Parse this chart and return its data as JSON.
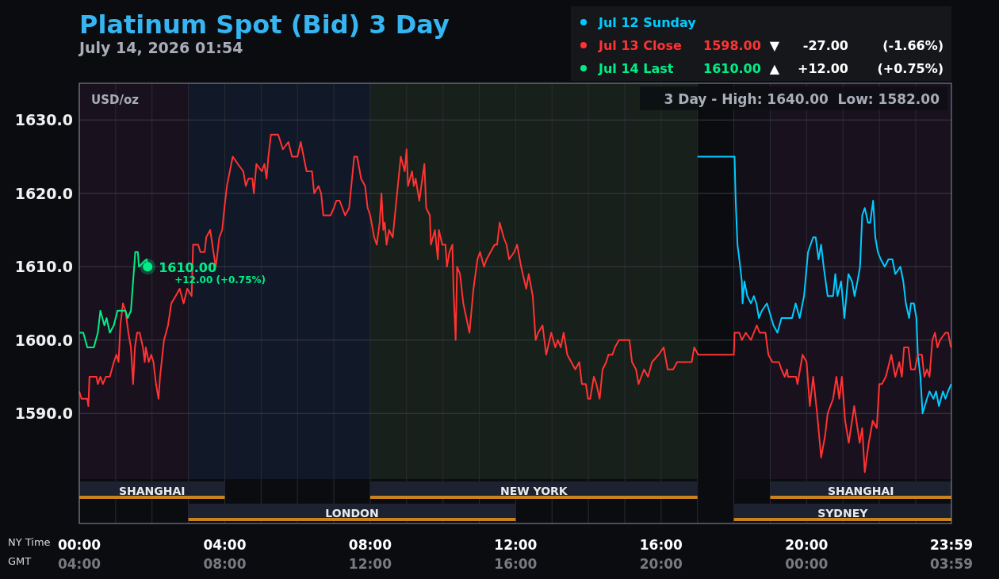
{
  "chart_data": {
    "type": "line",
    "title": "Platinum Spot (Bid) 3 Day",
    "subtitle": "July 14, 2026 01:54",
    "xlabel": "NY Time",
    "x2label": "GMT",
    "xlim": [
      0,
      23.9833
    ],
    "xticks": [
      {
        "value": 0,
        "label": "00:00"
      },
      {
        "value": 4,
        "label": "04:00"
      },
      {
        "value": 8,
        "label": "08:00"
      },
      {
        "value": 12,
        "label": "12:00"
      },
      {
        "value": 16,
        "label": "16:00"
      },
      {
        "value": 20,
        "label": "20:00"
      },
      {
        "value": 23.9833,
        "label": "23:59"
      }
    ],
    "x2lim": [
      "2026-07-14T04:00",
      "2026-07-15T03:59"
    ],
    "x2ticks": [
      {
        "value": "2026-07-14T04:00",
        "label": "04:00"
      },
      {
        "value": "2026-07-14T08:00",
        "label": "08:00"
      },
      {
        "value": "2026-07-14T12:00",
        "label": "12:00"
      },
      {
        "value": "2026-07-14T16:00",
        "label": "16:00"
      },
      {
        "value": "2026-07-14T20:00",
        "label": "20:00"
      },
      {
        "value": "2026-07-15T00:00",
        "label": "00:00"
      },
      {
        "value": "2026-07-15T03:59",
        "label": "03:59"
      }
    ],
    "ylim": [
      1575,
      1635
    ],
    "yticks": [
      {
        "value": 1590,
        "label": "1590.0"
      },
      {
        "value": 1600,
        "label": "1600.0"
      },
      {
        "value": 1610,
        "label": "1610.0"
      },
      {
        "value": 1620,
        "label": "1620.0"
      },
      {
        "value": 1630,
        "label": "1630.0"
      }
    ],
    "grid": true,
    "legend": "top right",
    "marker": "none",
    "line_style": "solid",
    "series": [
      {
        "name": "Jul 12 Sunday",
        "color": "#00ccff",
        "x": [
          17,
          18.02,
          18.05,
          18.1,
          18.15,
          18.22,
          18.24,
          18.29,
          18.37,
          18.47,
          18.55,
          18.62,
          18.69,
          18.77,
          18.91,
          19.09,
          19.2,
          19.31,
          19.6,
          19.7,
          19.81,
          19.93,
          20.04,
          20.11,
          20.18,
          20.25,
          20.33,
          20.4,
          20.47,
          20.58,
          20.73,
          20.79,
          20.85,
          20.95,
          21.04,
          21.15,
          21.25,
          21.32,
          21.4,
          21.47,
          21.53,
          21.6,
          21.69,
          21.75,
          21.83,
          21.89,
          21.96,
          22.04,
          22.15,
          22.25,
          22.36,
          22.44,
          22.58,
          22.66,
          22.73,
          22.82,
          22.87,
          22.95,
          23.02,
          23.06,
          23.13,
          23.19,
          23.31,
          23.38,
          23.49,
          23.56,
          23.64,
          23.75,
          23.82,
          23.89,
          23.98
        ],
        "values": [
          1625,
          1625,
          1619,
          1613,
          1611,
          1608,
          1605,
          1608,
          1606,
          1605,
          1606,
          1605,
          1603,
          1604,
          1605,
          1602,
          1601,
          1603,
          1603,
          1605,
          1603,
          1606,
          1612,
          1613,
          1614,
          1614,
          1611,
          1613,
          1610,
          1606,
          1606,
          1609,
          1606,
          1608,
          1603,
          1609,
          1608,
          1606,
          1608,
          1610,
          1617,
          1618,
          1616,
          1616,
          1619,
          1614,
          1612,
          1611,
          1610,
          1611,
          1611,
          1609,
          1610,
          1608,
          1605,
          1603,
          1605,
          1605,
          1603,
          1598,
          1595,
          1590,
          1592,
          1593,
          1592,
          1593,
          1591,
          1593,
          1592,
          1593,
          1594
        ]
      },
      {
        "name": "Jul 13 Close",
        "color": "#ff3333",
        "x": [
          0,
          0.06,
          0.22,
          0.25,
          0.28,
          0.47,
          0.51,
          0.58,
          0.65,
          0.73,
          0.84,
          0.95,
          1.02,
          1.08,
          1.13,
          1.2,
          1.27,
          1.35,
          1.42,
          1.48,
          1.53,
          1.59,
          1.66,
          1.75,
          1.8,
          1.83,
          1.91,
          1.98,
          2.04,
          2.11,
          2.18,
          2.22,
          2.33,
          2.44,
          2.53,
          2.65,
          2.76,
          2.87,
          2.97,
          3.09,
          3.13,
          3.27,
          3.33,
          3.45,
          3.49,
          3.6,
          3.75,
          3.78,
          3.85,
          3.93,
          3.99,
          4.06,
          4.22,
          4.36,
          4.51,
          4.58,
          4.65,
          4.76,
          4.8,
          4.87,
          5.02,
          5.09,
          5.15,
          5.2,
          5.27,
          5.47,
          5.6,
          5.75,
          5.85,
          6,
          6.09,
          6.25,
          6.4,
          6.46,
          6.58,
          6.65,
          6.71,
          6.91,
          7,
          7.07,
          7.16,
          7.31,
          7.42,
          7.56,
          7.64,
          7.75,
          7.86,
          7.93,
          8,
          8.11,
          8.18,
          8.26,
          8.31,
          8.36,
          8.4,
          8.45,
          8.52,
          8.62,
          8.66,
          8.76,
          8.84,
          8.95,
          9,
          9.04,
          9.15,
          9.2,
          9.25,
          9.35,
          9.49,
          9.54,
          9.64,
          9.67,
          9.78,
          9.86,
          9.89,
          9.98,
          10.07,
          10.11,
          10.18,
          10.26,
          10.29,
          10.35,
          10.39,
          10.47,
          10.56,
          10.73,
          10.84,
          10.95,
          11.02,
          11.13,
          11.2,
          11.31,
          11.42,
          11.49,
          11.56,
          11.67,
          11.75,
          11.82,
          11.96,
          12.04,
          12.15,
          12.29,
          12.36,
          12.47,
          12.55,
          12.62,
          12.74,
          12.84,
          12.98,
          13.09,
          13.16,
          13.24,
          13.32,
          13.42,
          13.53,
          13.64,
          13.75,
          13.82,
          13.93,
          13.99,
          14.05,
          14.15,
          14.22,
          14.31,
          14.39,
          14.49,
          14.55,
          14.66,
          14.73,
          14.84,
          15.02,
          15.13,
          15.2,
          15.31,
          15.38,
          15.53,
          15.64,
          15.75,
          15.93,
          16.07,
          16.18,
          16.33,
          16.44,
          16.84,
          16.91,
          17.02,
          18,
          18.02,
          18.15,
          18.22,
          18.33,
          18.47,
          18.55,
          18.63,
          18.71,
          18.87,
          18.95,
          19.06,
          19.24,
          19.31,
          19.4,
          19.46,
          19.49,
          19.71,
          19.75,
          19.89,
          20,
          20.09,
          20.18,
          20.29,
          20.4,
          20.51,
          20.58,
          20.73,
          20.82,
          20.9,
          20.97,
          21.06,
          21.16,
          21.31,
          21.46,
          21.53,
          21.6,
          21.71,
          21.82,
          21.93,
          22,
          22.07,
          22.18,
          22.33,
          22.44,
          22.55,
          22.62,
          22.68,
          22.8,
          22.87,
          22.98,
          23.06,
          23.17,
          23.24,
          23.31,
          23.38,
          23.46,
          23.53,
          23.6,
          23.67,
          23.82,
          23.89,
          23.97
        ],
        "values": [
          1593,
          1592,
          1592,
          1591,
          1595,
          1595,
          1594,
          1595,
          1594,
          1595,
          1595,
          1597,
          1598,
          1597,
          1602,
          1605,
          1604,
          1601,
          1599,
          1594,
          1599,
          1601,
          1601,
          1599,
          1597,
          1599,
          1597,
          1598,
          1597,
          1594,
          1592,
          1595,
          1600,
          1602,
          1605,
          1606,
          1607,
          1605,
          1607,
          1606,
          1613,
          1613,
          1612,
          1612,
          1614,
          1615,
          1610,
          1611,
          1614,
          1615,
          1618,
          1621,
          1625,
          1624,
          1623,
          1621,
          1622,
          1622,
          1620,
          1624,
          1623,
          1624,
          1622,
          1625,
          1628,
          1628,
          1626,
          1627,
          1625,
          1625,
          1627,
          1623,
          1623,
          1620,
          1621,
          1620,
          1617,
          1617,
          1618,
          1619,
          1619,
          1617,
          1618,
          1625,
          1625,
          1622,
          1621,
          1618,
          1617,
          1614,
          1613,
          1616,
          1620,
          1615,
          1616,
          1613,
          1615,
          1614,
          1616,
          1621,
          1625,
          1623,
          1626,
          1621,
          1623,
          1621,
          1622,
          1619,
          1624,
          1618,
          1617,
          1613,
          1615,
          1611,
          1615,
          1613,
          1613,
          1610,
          1612,
          1613,
          1607,
          1600,
          1610,
          1609,
          1605,
          1601,
          1607,
          1611,
          1612,
          1610,
          1611,
          1612,
          1613,
          1613,
          1616,
          1614,
          1613,
          1611,
          1612,
          1613,
          1610,
          1607,
          1609,
          1606,
          1600,
          1601,
          1602,
          1598,
          1601,
          1599,
          1600,
          1599,
          1601,
          1598,
          1597,
          1596,
          1597,
          1594,
          1594,
          1592,
          1592,
          1595,
          1594,
          1592,
          1596,
          1597,
          1598,
          1598,
          1599,
          1600,
          1600,
          1600,
          1597,
          1596,
          1594,
          1596,
          1595,
          1597,
          1598,
          1599,
          1596,
          1596,
          1597,
          1597,
          1599,
          1598,
          1598,
          1601,
          1601,
          1600,
          1601,
          1600,
          1601,
          1602,
          1601,
          1601,
          1598,
          1597,
          1597,
          1596,
          1595,
          1596,
          1595,
          1595,
          1594,
          1598,
          1597,
          1591,
          1595,
          1590,
          1584,
          1587,
          1590,
          1592,
          1595,
          1592,
          1595,
          1589,
          1586,
          1591,
          1586,
          1588,
          1582,
          1586,
          1589,
          1588,
          1594,
          1594,
          1595,
          1598,
          1595,
          1597,
          1595,
          1599,
          1599,
          1596,
          1596,
          1598,
          1598,
          1595,
          1596,
          1595,
          1600,
          1601,
          1599,
          1600,
          1601,
          1601,
          1599
        ]
      },
      {
        "name": "Jul 14 Last",
        "color": "#00ee88",
        "x": [
          0,
          0.11,
          0.22,
          0.4,
          0.51,
          0.58,
          0.69,
          0.75,
          0.84,
          0.95,
          1.05,
          1.27,
          1.33,
          1.42,
          1.45,
          1.54,
          1.61,
          1.64,
          1.85,
          1.88
        ],
        "values": [
          1601,
          1601,
          1599,
          1599,
          1601,
          1604,
          1602,
          1603,
          1601,
          1602,
          1604,
          1604,
          1603,
          1604,
          1606,
          1612,
          1612,
          1610,
          1611,
          1610
        ]
      }
    ],
    "bands": [
      {
        "axis": "x",
        "from": 0,
        "to": 4,
        "label": "SHANGHAI",
        "color": "#1a111f"
      },
      {
        "axis": "x",
        "from": 3,
        "to": 12,
        "label": "LONDON",
        "color": "#111827"
      },
      {
        "axis": "x",
        "from": 8,
        "to": 17,
        "label": "NEW YORK",
        "color": "#17201a"
      },
      {
        "axis": "x",
        "from": 19,
        "to": 23.9833,
        "label": "SHANGHAI",
        "color": "#1a111f"
      },
      {
        "axis": "x",
        "from": 18,
        "to": 23.9833,
        "label": "SYDNEY",
        "color": "#1a111f"
      }
    ],
    "annotations": [
      "USD/oz",
      "3 Day - High: 1640.00  Low: 1582.00",
      "1598.00",
      "▼",
      "-27.00",
      "(-1.66%)",
      "1610.00",
      "▲",
      "+12.00",
      "(+0.75%)",
      {
        "text": "1610.00",
        "x": 1.88,
        "y": 1610
      },
      {
        "text": "+12.00 (+0.75%)",
        "x": 1.88,
        "y": 1610
      }
    ]
  }
}
